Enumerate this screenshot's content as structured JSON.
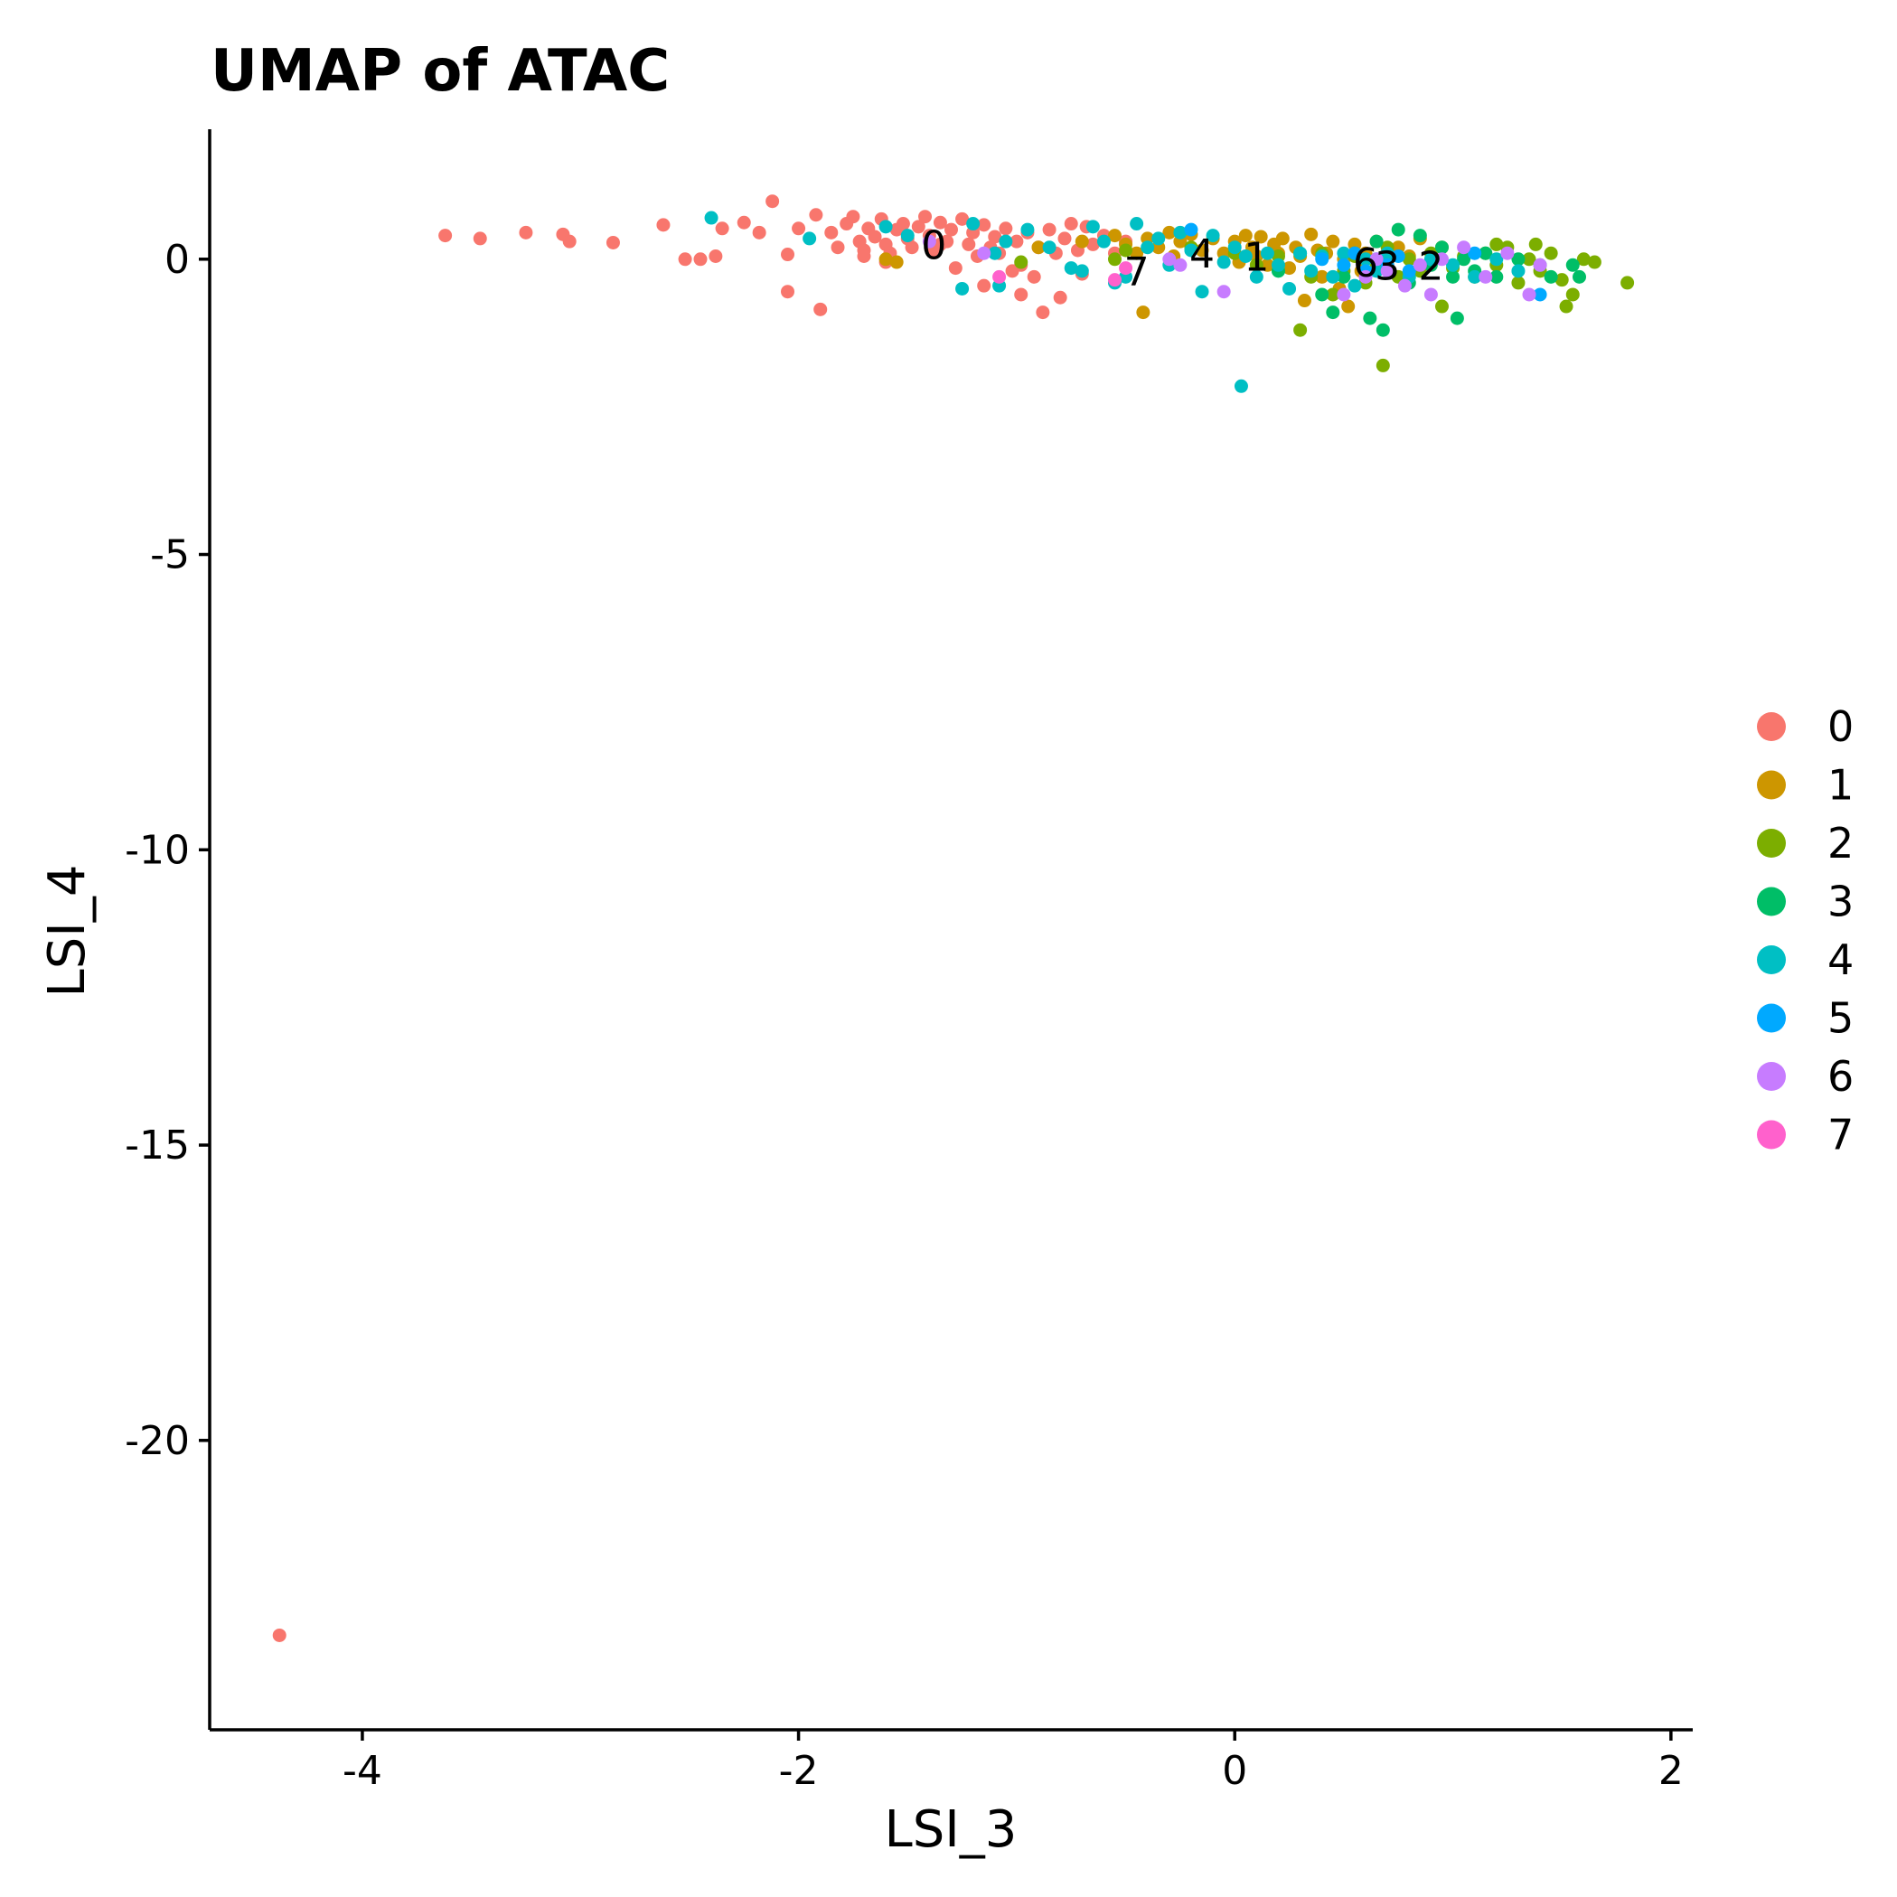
{
  "chart_data": {
    "type": "scatter",
    "title": "UMAP of ATAC",
    "xlabel": "LSI_3",
    "ylabel": "LSI_4",
    "xlim": [
      -4.7,
      2.1
    ],
    "ylim": [
      -24.9,
      2.2
    ],
    "x_ticks": [
      -4,
      -2,
      0,
      2
    ],
    "x_tick_labels": [
      "-4",
      "-2",
      "0",
      "2"
    ],
    "y_ticks": [
      0,
      -5,
      -10,
      -15,
      -20
    ],
    "y_tick_labels": [
      "0",
      "-5",
      "-10",
      "-15",
      "-20"
    ],
    "grid": false,
    "legend_position": "right",
    "colors": {
      "0": "#F8766D",
      "1": "#CD9600",
      "2": "#7CAE00",
      "3": "#00BE67",
      "4": "#00BFC4",
      "5": "#00A9FF",
      "6": "#C77CFF",
      "7": "#FF61CC"
    },
    "series": [
      {
        "name": "0",
        "points": [
          [
            -4.38,
            -23.3
          ],
          [
            -3.62,
            0.4
          ],
          [
            -3.46,
            0.35
          ],
          [
            -3.25,
            0.45
          ],
          [
            -3.08,
            0.42
          ],
          [
            -3.05,
            0.3
          ],
          [
            -2.85,
            0.28
          ],
          [
            -2.62,
            0.58
          ],
          [
            -2.52,
            0.0
          ],
          [
            -2.45,
            0.0
          ],
          [
            -2.35,
            0.52
          ],
          [
            -2.38,
            0.05
          ],
          [
            -2.25,
            0.62
          ],
          [
            -2.18,
            0.45
          ],
          [
            -2.12,
            0.98
          ],
          [
            -2.05,
            0.08
          ],
          [
            -2.05,
            -0.55
          ],
          [
            -2.0,
            0.52
          ],
          [
            -1.92,
            0.75
          ],
          [
            -1.9,
            -0.85
          ],
          [
            -1.85,
            0.45
          ],
          [
            -1.82,
            0.2
          ],
          [
            -1.78,
            0.6
          ],
          [
            -1.75,
            0.72
          ],
          [
            -1.72,
            0.3
          ],
          [
            -1.7,
            0.15
          ],
          [
            -1.68,
            0.52
          ],
          [
            -1.65,
            0.38
          ],
          [
            -1.62,
            0.68
          ],
          [
            -1.6,
            0.25
          ],
          [
            -1.58,
            0.1
          ],
          [
            -1.55,
            0.5
          ],
          [
            -1.52,
            0.6
          ],
          [
            -1.5,
            0.35
          ],
          [
            -1.48,
            0.2
          ],
          [
            -1.45,
            0.55
          ],
          [
            -1.42,
            0.72
          ],
          [
            -1.4,
            0.4
          ],
          [
            -1.38,
            0.12
          ],
          [
            -1.35,
            0.62
          ],
          [
            -1.32,
            0.3
          ],
          [
            -1.3,
            0.5
          ],
          [
            -1.28,
            -0.15
          ],
          [
            -1.25,
            0.68
          ],
          [
            -1.22,
            0.25
          ],
          [
            -1.2,
            0.45
          ],
          [
            -1.18,
            0.05
          ],
          [
            -1.15,
            0.58
          ],
          [
            -1.12,
            0.2
          ],
          [
            -1.1,
            0.38
          ],
          [
            -1.08,
            0.1
          ],
          [
            -1.05,
            0.52
          ],
          [
            -1.02,
            -0.2
          ],
          [
            -1.0,
            0.3
          ],
          [
            -0.98,
            -0.6
          ],
          [
            -0.95,
            0.45
          ],
          [
            -0.92,
            -0.3
          ],
          [
            -0.9,
            0.2
          ],
          [
            -0.88,
            -0.9
          ],
          [
            -0.85,
            0.5
          ],
          [
            -0.82,
            0.1
          ],
          [
            -0.8,
            -0.65
          ],
          [
            -0.78,
            0.35
          ],
          [
            -0.75,
            0.6
          ],
          [
            -0.72,
            0.15
          ],
          [
            -0.7,
            -0.25
          ],
          [
            -0.68,
            0.55
          ],
          [
            -0.65,
            0.25
          ],
          [
            -0.6,
            0.4
          ],
          [
            -0.55,
            0.1
          ],
          [
            -0.5,
            0.3
          ],
          [
            -1.6,
            -0.05
          ],
          [
            -1.7,
            0.05
          ],
          [
            -1.35,
            0.25
          ],
          [
            -1.15,
            -0.45
          ],
          [
            -0.98,
            -0.1
          ]
        ]
      },
      {
        "name": "1",
        "points": [
          [
            -1.6,
            0.0
          ],
          [
            -1.55,
            -0.05
          ],
          [
            -0.9,
            0.2
          ],
          [
            -0.7,
            0.3
          ],
          [
            -0.55,
            0.4
          ],
          [
            -0.5,
            0.25
          ],
          [
            -0.45,
            0.1
          ],
          [
            -0.42,
            -0.9
          ],
          [
            -0.4,
            0.35
          ],
          [
            -0.35,
            0.2
          ],
          [
            -0.3,
            0.45
          ],
          [
            -0.28,
            0.05
          ],
          [
            -0.25,
            0.3
          ],
          [
            -0.2,
            0.42
          ],
          [
            -0.15,
            0.15
          ],
          [
            -0.1,
            0.35
          ],
          [
            -0.05,
            0.1
          ],
          [
            0.0,
            0.3
          ],
          [
            0.02,
            -0.05
          ],
          [
            0.05,
            0.4
          ],
          [
            0.08,
            0.2
          ],
          [
            0.1,
            0.05
          ],
          [
            0.12,
            0.38
          ],
          [
            0.15,
            -0.1
          ],
          [
            0.18,
            0.25
          ],
          [
            0.2,
            0.1
          ],
          [
            0.22,
            0.35
          ],
          [
            0.25,
            -0.15
          ],
          [
            0.28,
            0.2
          ],
          [
            0.3,
            0.05
          ],
          [
            0.32,
            -0.7
          ],
          [
            0.35,
            0.42
          ],
          [
            0.38,
            0.15
          ],
          [
            0.4,
            -0.3
          ],
          [
            0.42,
            0.1
          ],
          [
            0.45,
            0.3
          ],
          [
            0.48,
            -0.5
          ],
          [
            0.5,
            0.0
          ],
          [
            0.52,
            -0.8
          ],
          [
            0.55,
            0.25
          ],
          [
            0.58,
            -0.2
          ],
          [
            0.6,
            0.1
          ],
          [
            0.65,
            0.3
          ],
          [
            0.7,
            -0.1
          ],
          [
            0.75,
            0.2
          ],
          [
            0.8,
            0.05
          ],
          [
            0.85,
            0.35
          ],
          [
            0.9,
            -0.05
          ],
          [
            0.95,
            0.2
          ]
        ]
      },
      {
        "name": "2",
        "points": [
          [
            -0.98,
            -0.05
          ],
          [
            -0.55,
            0.0
          ],
          [
            -0.5,
            0.15
          ],
          [
            -0.2,
            0.2
          ],
          [
            0.0,
            0.1
          ],
          [
            0.1,
            -0.1
          ],
          [
            0.2,
            0.05
          ],
          [
            0.3,
            -1.2
          ],
          [
            0.35,
            -0.3
          ],
          [
            0.4,
            0.1
          ],
          [
            0.45,
            -0.6
          ],
          [
            0.5,
            -0.2
          ],
          [
            0.55,
            0.05
          ],
          [
            0.6,
            -0.4
          ],
          [
            0.65,
            -0.1
          ],
          [
            0.68,
            -1.8
          ],
          [
            0.7,
            0.2
          ],
          [
            0.75,
            -0.3
          ],
          [
            0.8,
            0.0
          ],
          [
            0.85,
            -0.2
          ],
          [
            0.9,
            0.1
          ],
          [
            0.95,
            -0.8
          ],
          [
            1.0,
            -0.15
          ],
          [
            1.05,
            0.05
          ],
          [
            1.1,
            -0.3
          ],
          [
            1.15,
            0.1
          ],
          [
            1.2,
            -0.1
          ],
          [
            1.25,
            0.2
          ],
          [
            1.3,
            -0.4
          ],
          [
            1.35,
            0.0
          ],
          [
            1.4,
            -0.2
          ],
          [
            1.45,
            0.1
          ],
          [
            1.5,
            -0.35
          ],
          [
            1.52,
            -0.8
          ],
          [
            1.55,
            -0.6
          ],
          [
            1.6,
            0.0
          ],
          [
            1.65,
            -0.05
          ],
          [
            1.8,
            -0.4
          ],
          [
            1.2,
            0.25
          ],
          [
            1.38,
            0.25
          ]
        ]
      },
      {
        "name": "3",
        "points": [
          [
            0.2,
            -0.2
          ],
          [
            0.3,
            0.1
          ],
          [
            0.4,
            -0.6
          ],
          [
            0.45,
            -0.9
          ],
          [
            0.5,
            -0.3
          ],
          [
            0.55,
            0.1
          ],
          [
            0.6,
            -0.2
          ],
          [
            0.62,
            -1.0
          ],
          [
            0.65,
            0.3
          ],
          [
            0.68,
            -1.2
          ],
          [
            0.7,
            0.0
          ],
          [
            0.75,
            0.5
          ],
          [
            0.8,
            -0.4
          ],
          [
            0.85,
            0.4
          ],
          [
            0.9,
            -0.1
          ],
          [
            0.95,
            0.2
          ],
          [
            1.0,
            -0.3
          ],
          [
            1.02,
            -1.0
          ],
          [
            1.05,
            0.0
          ],
          [
            1.1,
            -0.2
          ],
          [
            1.15,
            0.1
          ],
          [
            1.2,
            -0.3
          ],
          [
            1.3,
            0.0
          ],
          [
            1.4,
            -0.1
          ],
          [
            1.45,
            -0.3
          ],
          [
            1.55,
            -0.1
          ],
          [
            1.58,
            -0.3
          ]
        ]
      },
      {
        "name": "4",
        "points": [
          [
            -2.4,
            0.7
          ],
          [
            -1.95,
            0.35
          ],
          [
            -1.6,
            0.55
          ],
          [
            -1.5,
            0.4
          ],
          [
            -1.25,
            -0.5
          ],
          [
            -1.2,
            0.6
          ],
          [
            -1.1,
            0.1
          ],
          [
            -1.08,
            -0.45
          ],
          [
            -1.05,
            0.3
          ],
          [
            -0.95,
            0.5
          ],
          [
            -0.85,
            0.2
          ],
          [
            -0.75,
            -0.15
          ],
          [
            -0.7,
            -0.2
          ],
          [
            -0.65,
            0.55
          ],
          [
            -0.6,
            0.3
          ],
          [
            -0.55,
            -0.4
          ],
          [
            -0.5,
            -0.3
          ],
          [
            -0.45,
            0.6
          ],
          [
            -0.4,
            0.2
          ],
          [
            -0.35,
            0.35
          ],
          [
            -0.3,
            -0.1
          ],
          [
            -0.25,
            0.45
          ],
          [
            -0.2,
            0.15
          ],
          [
            -0.15,
            -0.55
          ],
          [
            -0.1,
            0.4
          ],
          [
            -0.05,
            -0.05
          ],
          [
            0.0,
            0.2
          ],
          [
            0.03,
            -2.15
          ],
          [
            0.05,
            0.05
          ],
          [
            0.1,
            -0.3
          ],
          [
            0.15,
            0.1
          ],
          [
            0.2,
            -0.1
          ],
          [
            0.25,
            -0.5
          ],
          [
            0.3,
            0.1
          ],
          [
            0.35,
            -0.2
          ],
          [
            0.4,
            0.05
          ],
          [
            0.45,
            -0.3
          ],
          [
            0.5,
            0.1
          ],
          [
            0.55,
            -0.45
          ],
          [
            0.6,
            0.0
          ],
          [
            0.65,
            -0.2
          ],
          [
            0.7,
            0.1
          ],
          [
            0.8,
            -0.3
          ],
          [
            0.9,
            0.0
          ],
          [
            1.0,
            -0.1
          ],
          [
            1.1,
            -0.3
          ],
          [
            1.2,
            0.0
          ],
          [
            1.3,
            -0.2
          ]
        ]
      },
      {
        "name": "5",
        "points": [
          [
            -0.2,
            0.5
          ],
          [
            0.4,
            0.0
          ],
          [
            0.5,
            -0.1
          ],
          [
            0.55,
            0.1
          ],
          [
            0.6,
            -0.2
          ],
          [
            0.65,
            0.0
          ],
          [
            0.7,
            -0.1
          ],
          [
            0.75,
            0.05
          ],
          [
            0.8,
            -0.2
          ],
          [
            1.1,
            0.1
          ],
          [
            1.4,
            -0.6
          ]
        ]
      },
      {
        "name": "6",
        "points": [
          [
            -1.4,
            0.3
          ],
          [
            -1.15,
            0.1
          ],
          [
            -0.3,
            0.0
          ],
          [
            -0.25,
            -0.1
          ],
          [
            -0.05,
            -0.55
          ],
          [
            0.5,
            -0.6
          ],
          [
            0.6,
            -0.3
          ],
          [
            0.65,
            0.0
          ],
          [
            0.7,
            -0.2
          ],
          [
            0.78,
            -0.45
          ],
          [
            0.85,
            -0.1
          ],
          [
            0.9,
            -0.6
          ],
          [
            0.95,
            0.0
          ],
          [
            1.05,
            0.2
          ],
          [
            1.15,
            -0.3
          ],
          [
            1.25,
            0.1
          ],
          [
            1.35,
            -0.6
          ],
          [
            1.4,
            -0.1
          ]
        ]
      },
      {
        "name": "7",
        "points": [
          [
            -1.08,
            -0.3
          ],
          [
            -0.55,
            -0.35
          ],
          [
            -0.5,
            -0.15
          ]
        ]
      }
    ],
    "cluster_labels": [
      {
        "text": "0",
        "x": -1.38,
        "y": 0.25
      },
      {
        "text": "7",
        "x": -0.45,
        "y": -0.2
      },
      {
        "text": "4",
        "x": -0.15,
        "y": 0.1
      },
      {
        "text": "1",
        "x": 0.1,
        "y": 0.05
      },
      {
        "text": "6",
        "x": 0.6,
        "y": -0.05
      },
      {
        "text": "3",
        "x": 0.7,
        "y": -0.1
      },
      {
        "text": "2",
        "x": 0.9,
        "y": -0.1
      }
    ]
  }
}
